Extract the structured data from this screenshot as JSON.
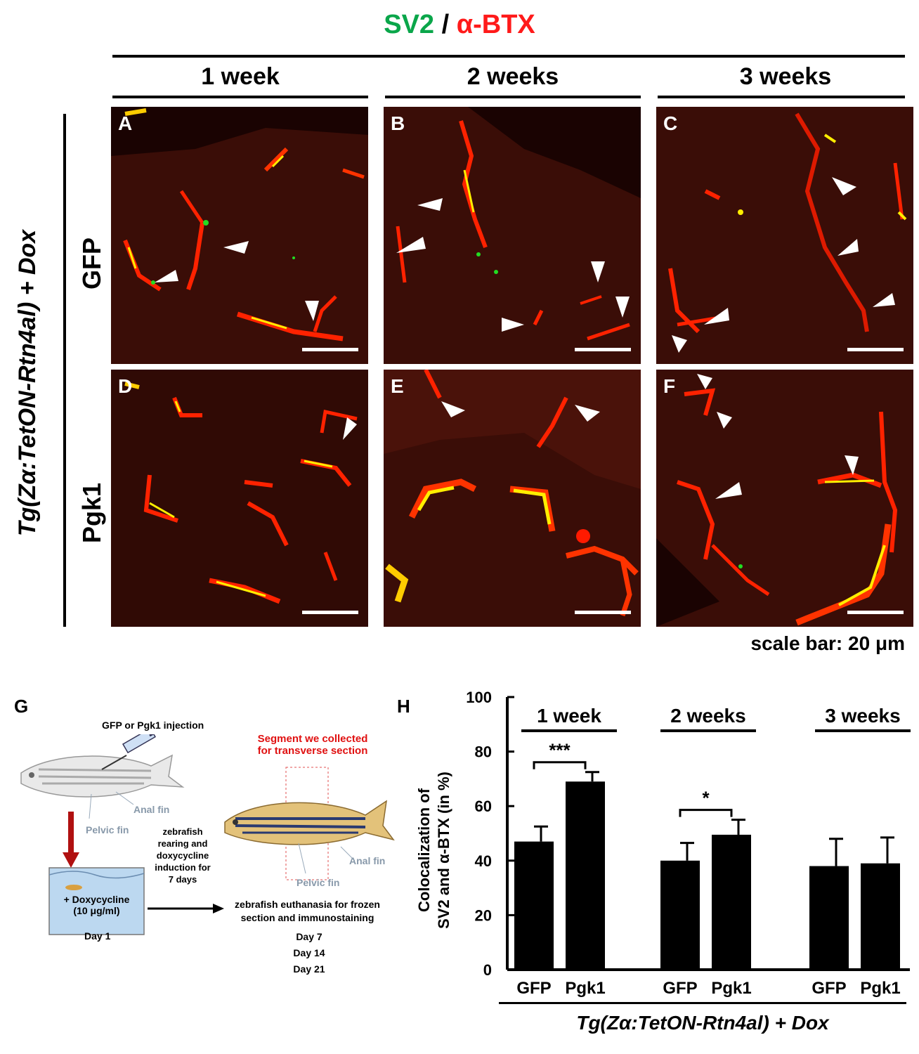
{
  "figure": {
    "title_part1": "SV2",
    "title_sep": " / ",
    "title_part2": "α-BTX",
    "columns": [
      "1 week",
      "2 weeks",
      "3 weeks"
    ],
    "rows": [
      "GFP",
      "Pgk1"
    ],
    "side_label": "Tg(Zα:TetON-Rtn4al) + Dox",
    "panel_labels": [
      "A",
      "B",
      "C",
      "D",
      "E",
      "F"
    ],
    "scale_bar": "scale bar: 20 μm",
    "colors": {
      "green": "#0aa64a",
      "red": "#ff1a1a",
      "bar": "#000000"
    }
  },
  "schematic": {
    "label": "G",
    "injection": "GFP or Pgk1 injection",
    "anal_fin_1": "Anal fin",
    "pelvic_fin_1": "Pelvic fin",
    "doxy_line1": "+ Doxycycline",
    "doxy_line2": "(10 μg/ml)",
    "day1": "Day 1",
    "rearing_lines": [
      "zebrafish",
      "rearing and",
      "doxycycline",
      "induction for",
      "7 days"
    ],
    "segment_lines": [
      "Segment  we collected",
      "for transverse section"
    ],
    "anal_fin_2": "Anal fin",
    "pelvic_fin_2": "Pelvic fin",
    "euthanasia_lines": [
      "zebrafish euthanasia for frozen",
      "section and immunostaining"
    ],
    "days": [
      "Day 7",
      "Day 14",
      "Day 21"
    ]
  },
  "chart_data": {
    "label": "H",
    "type": "bar",
    "ylabel_line1": "Colocalization of",
    "ylabel_line2": "SV2 and α-BTX (in %)",
    "ylim": [
      0,
      100
    ],
    "yticks": [
      0,
      20,
      40,
      60,
      80,
      100
    ],
    "groups": [
      "1 week",
      "2 weeks",
      "3 weeks"
    ],
    "categories": [
      "GFP",
      "Pgk1",
      "GFP",
      "Pgk1",
      "GFP",
      "Pgk1"
    ],
    "values": [
      47,
      69,
      40,
      49.5,
      38,
      39
    ],
    "errors": [
      5.5,
      3.5,
      6.5,
      5.5,
      10,
      9.5
    ],
    "significance": [
      "***",
      "*",
      ""
    ],
    "xlabel": "Tg(Zα:TetON-Rtn4al) + Dox"
  }
}
